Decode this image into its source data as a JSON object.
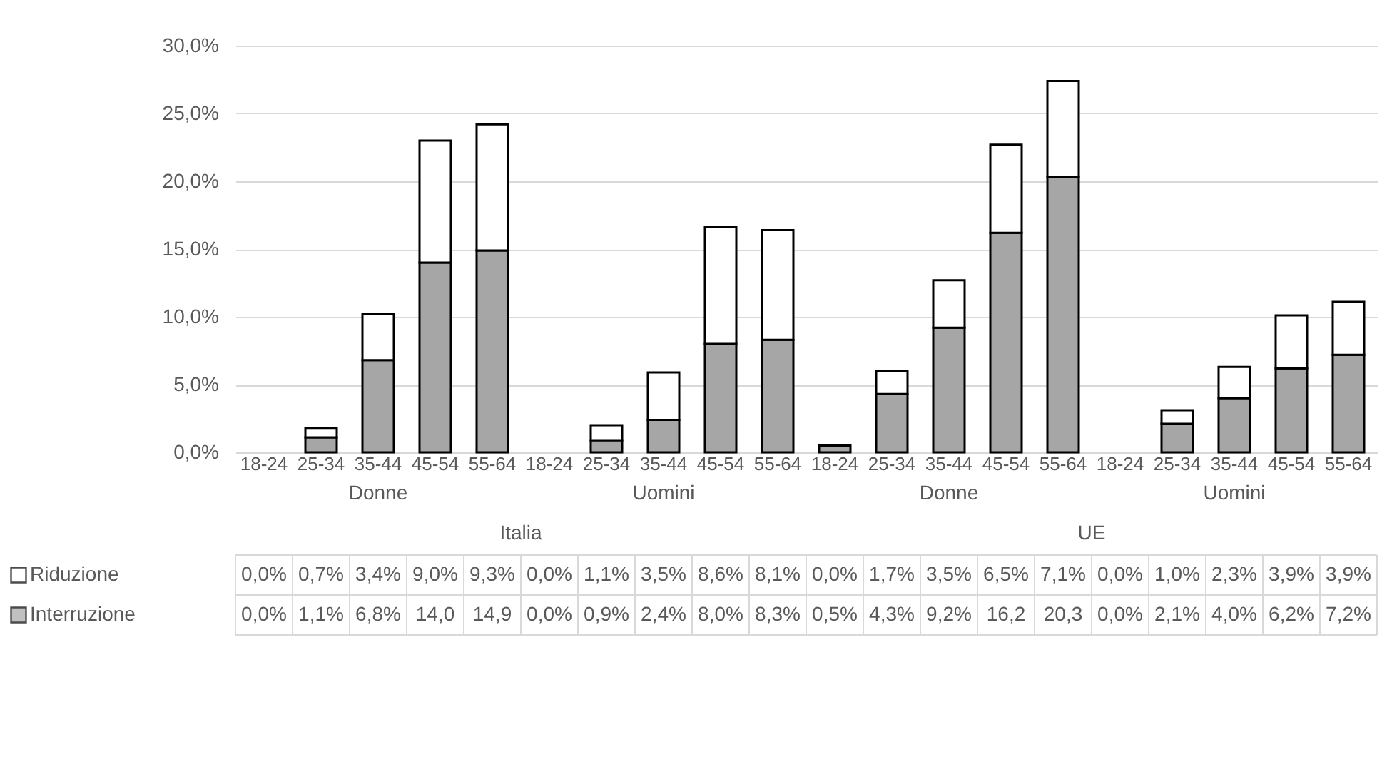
{
  "chart_data": {
    "type": "bar",
    "stacked": true,
    "categories": [
      "18-24",
      "25-34",
      "35-44",
      "45-54",
      "55-64",
      "18-24",
      "25-34",
      "35-44",
      "45-54",
      "55-64",
      "18-24",
      "25-34",
      "35-44",
      "45-54",
      "55-64",
      "18-24",
      "25-34",
      "35-44",
      "45-54",
      "55-64"
    ],
    "series": [
      {
        "name": "Interruzione",
        "color": "#a6a6a6",
        "values": [
          0.0,
          1.1,
          6.8,
          14.0,
          14.9,
          0.0,
          0.9,
          2.4,
          8.0,
          8.3,
          0.5,
          4.3,
          9.2,
          16.2,
          20.3,
          0.0,
          2.1,
          4.0,
          6.2,
          7.2
        ],
        "value_labels": [
          "0,0%",
          "1,1%",
          "6,8%",
          "14,0",
          "14,9",
          "0,0%",
          "0,9%",
          "2,4%",
          "8,0%",
          "8,3%",
          "0,5%",
          "4,3%",
          "9,2%",
          "16,2",
          "20,3",
          "0,0%",
          "2,1%",
          "4,0%",
          "6,2%",
          "7,2%"
        ]
      },
      {
        "name": "Riduzione",
        "color": "#ffffff",
        "values": [
          0.0,
          0.7,
          3.4,
          9.0,
          9.3,
          0.0,
          1.1,
          3.5,
          8.6,
          8.1,
          0.0,
          1.7,
          3.5,
          6.5,
          7.1,
          0.0,
          1.0,
          2.3,
          3.9,
          3.9
        ],
        "value_labels": [
          "0,0%",
          "0,7%",
          "3,4%",
          "9,0%",
          "9,3%",
          "0,0%",
          "1,1%",
          "3,5%",
          "8,6%",
          "8,1%",
          "0,0%",
          "1,7%",
          "3,5%",
          "6,5%",
          "7,1%",
          "0,0%",
          "1,0%",
          "2,3%",
          "3,9%",
          "3,9%"
        ]
      }
    ],
    "ylim": [
      0,
      30
    ],
    "yticks": [
      {
        "value": 0,
        "label": "0,0%"
      },
      {
        "value": 5,
        "label": "5,0%"
      },
      {
        "value": 10,
        "label": "10,0%"
      },
      {
        "value": 15,
        "label": "15,0%"
      },
      {
        "value": 20,
        "label": "20,0%"
      },
      {
        "value": 25,
        "label": "25,0%"
      },
      {
        "value": 30,
        "label": "30,0%"
      }
    ],
    "annotations": [
      "Donne",
      "Uomini",
      "Donne",
      "Uomini",
      "Italia",
      "UE"
    ],
    "grid": "y",
    "legend": "bottom"
  }
}
